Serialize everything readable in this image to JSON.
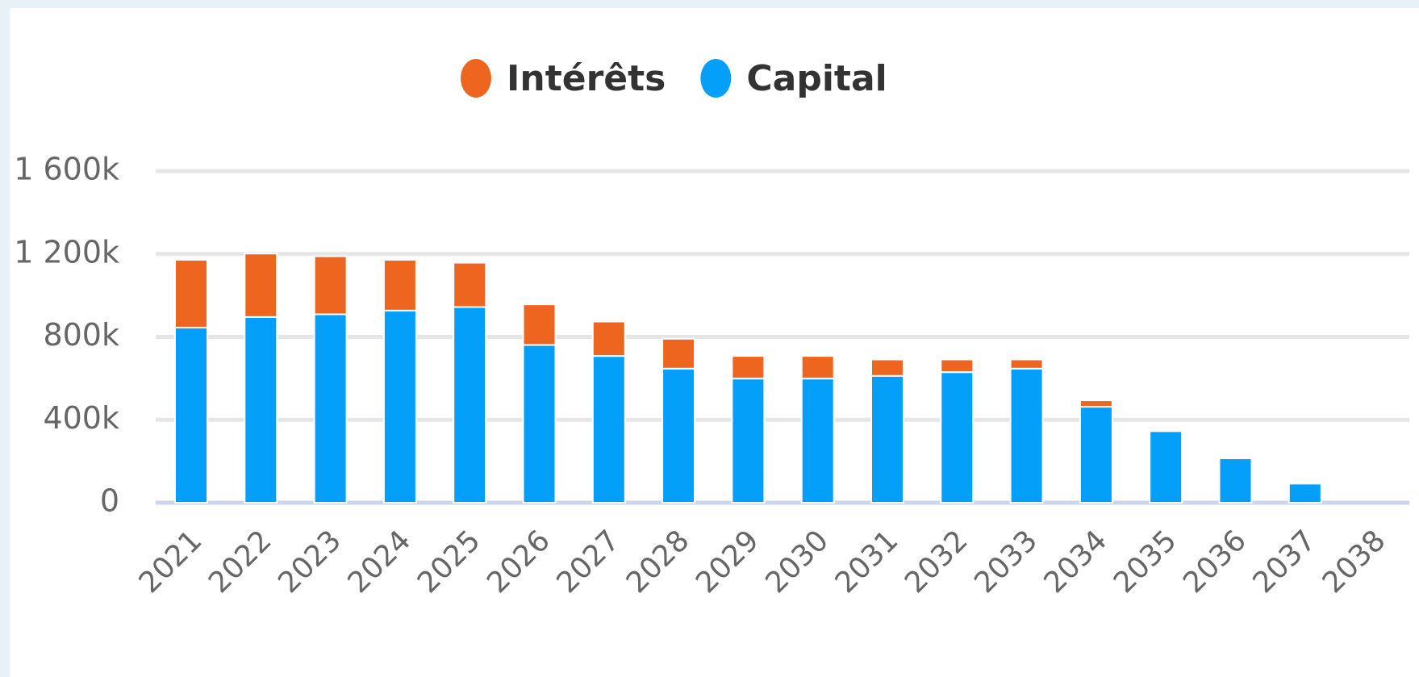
{
  "chart_data": {
    "type": "stacked-bar",
    "categories": [
      "2021",
      "2022",
      "2023",
      "2024",
      "2025",
      "2026",
      "2027",
      "2028",
      "2029",
      "2030",
      "2031",
      "2032",
      "2033",
      "2034",
      "2035",
      "2036",
      "2037",
      "2038"
    ],
    "series": [
      {
        "name": "Capital",
        "color": "#049ff9",
        "values": [
          845,
          896,
          909,
          927,
          944,
          761,
          708,
          647,
          599,
          599,
          612,
          630,
          647,
          463,
          345,
          214,
          92,
          0
        ]
      },
      {
        "name": "Intérêts",
        "color": "#ee6520",
        "values": [
          327,
          306,
          280,
          245,
          214,
          196,
          166,
          144,
          109,
          109,
          79,
          61,
          44,
          31,
          0,
          0,
          0,
          0
        ]
      }
    ],
    "legend_order": [
      "Intérêts",
      "Capital"
    ],
    "ylim": [
      0,
      1600
    ],
    "yticks": [
      0,
      {
        "value": 400,
        "label": "400k"
      },
      {
        "value": 800,
        "label": "800k"
      },
      {
        "value": 1200,
        "label": "1 200k"
      },
      {
        "value": 1600,
        "label": "1 600k"
      }
    ],
    "grid": true
  }
}
